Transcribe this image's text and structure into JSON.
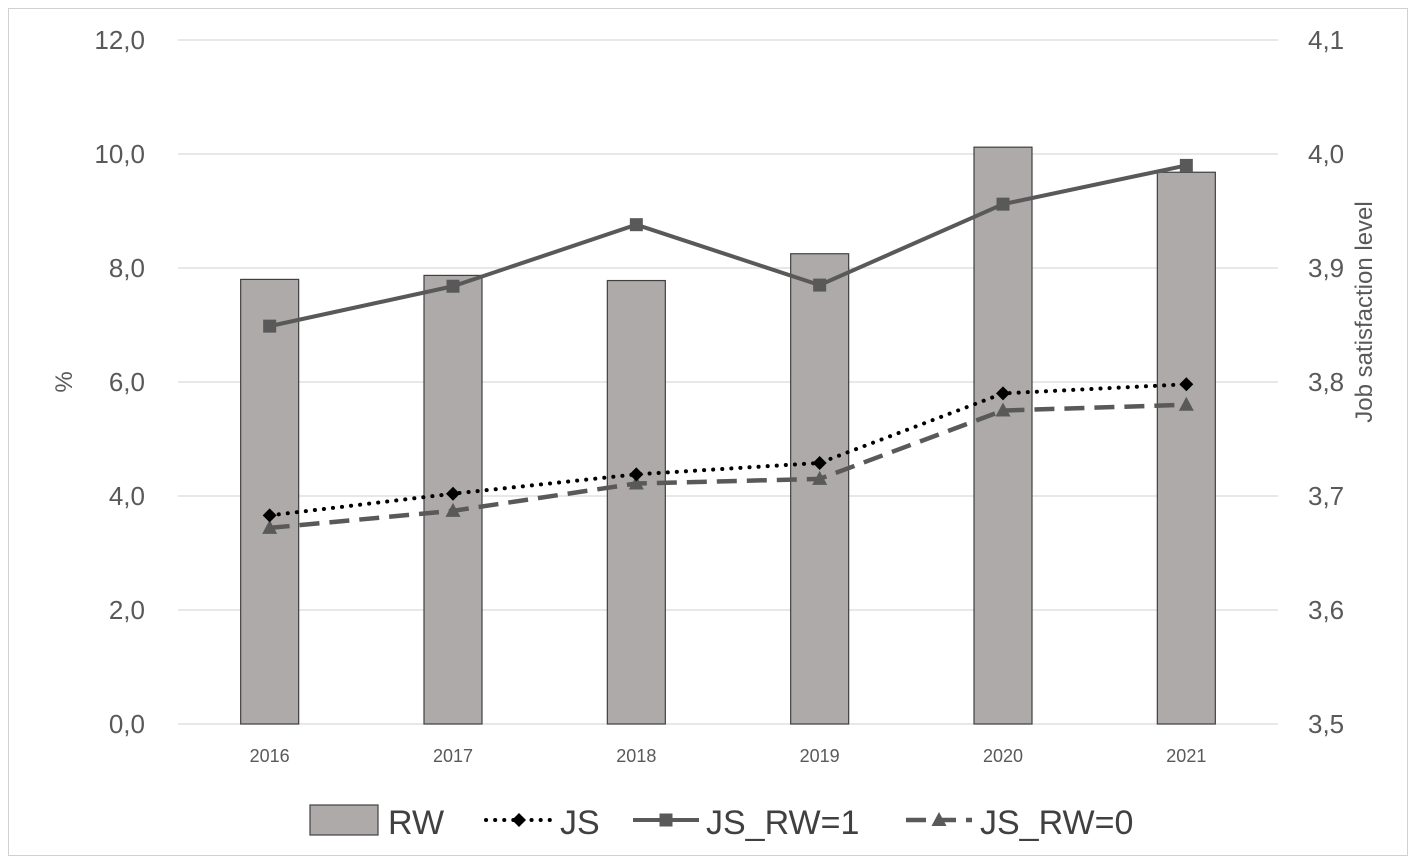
{
  "chart_data": {
    "type": "bar",
    "categories": [
      "2016",
      "2017",
      "2018",
      "2019",
      "2020",
      "2021"
    ],
    "y_left": {
      "label": "%",
      "range": [
        0,
        12
      ],
      "ticks": [
        "0,0",
        "2,0",
        "4,0",
        "6,0",
        "8,0",
        "10,0",
        "12,0"
      ],
      "tick_values": [
        0,
        2,
        4,
        6,
        8,
        10,
        12
      ]
    },
    "y_right": {
      "label": "Job satisfaction level",
      "range": [
        3.5,
        4.1
      ],
      "ticks": [
        "3,5",
        "3,6",
        "3,7",
        "3,8",
        "3,9",
        "4,0",
        "4,1"
      ],
      "tick_values": [
        3.5,
        3.6,
        3.7,
        3.8,
        3.9,
        4.0,
        4.1
      ]
    },
    "series": [
      {
        "name": "RW",
        "kind": "bar",
        "axis": "left",
        "values": [
          7.8,
          7.87,
          7.78,
          8.25,
          10.12,
          9.68
        ],
        "color": "#aeaaaa",
        "stroke": "#404040"
      },
      {
        "name": "JS",
        "kind": "line",
        "axis": "right",
        "style": "dotted",
        "marker": "diamond",
        "values": [
          3.683,
          3.702,
          3.719,
          3.729,
          3.79,
          3.798
        ],
        "color": "#000000"
      },
      {
        "name": "JS_RW=1",
        "kind": "line",
        "axis": "right",
        "style": "solid",
        "marker": "square",
        "values": [
          3.849,
          3.884,
          3.938,
          3.885,
          3.956,
          3.99
        ],
        "color": "#595959"
      },
      {
        "name": "JS_RW=0",
        "kind": "line",
        "axis": "right",
        "style": "dashed",
        "marker": "triangle",
        "values": [
          3.672,
          3.687,
          3.711,
          3.715,
          3.775,
          3.78
        ],
        "color": "#595959"
      }
    ],
    "grid": true,
    "legend": "bottom"
  }
}
